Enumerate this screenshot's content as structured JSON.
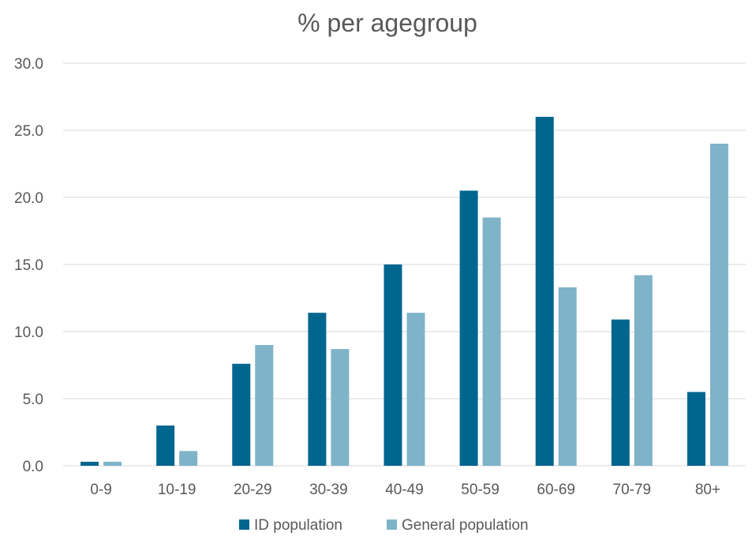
{
  "chart_data": {
    "type": "bar",
    "title": "% per agegroup",
    "xlabel": "",
    "ylabel": "",
    "categories": [
      "0-9",
      "10-19",
      "20-29",
      "30-39",
      "40-49",
      "50-59",
      "60-69",
      "70-79",
      "80+"
    ],
    "series": [
      {
        "name": "ID population",
        "color": "#00668f",
        "values": [
          0.3,
          3.0,
          7.6,
          11.4,
          15.0,
          20.5,
          26.0,
          10.9,
          5.5
        ]
      },
      {
        "name": "General population",
        "color": "#7fb3c8",
        "values": [
          0.3,
          1.1,
          9.0,
          8.7,
          11.4,
          18.5,
          13.3,
          14.2,
          24.0
        ]
      }
    ],
    "ylim": [
      0,
      30
    ],
    "yticks": [
      "0.0",
      "5.0",
      "10.0",
      "15.0",
      "20.0",
      "25.0",
      "30.0"
    ],
    "grid": true,
    "legend_position": "bottom"
  }
}
